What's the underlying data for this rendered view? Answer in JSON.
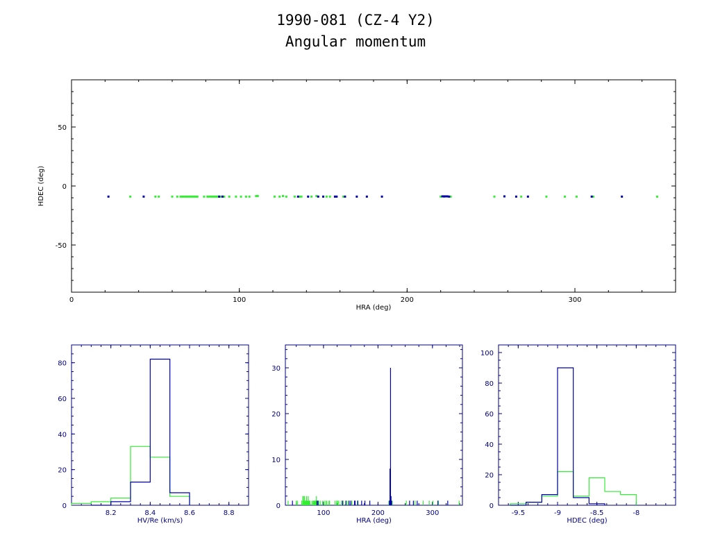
{
  "figure": {
    "title_line1": "1990-081 (CZ-4 Y2)",
    "title_line2": "Angular momentum"
  },
  "colors": {
    "axis_top": "#000000",
    "axis_bottom": "#000080",
    "green": "#33ee33",
    "blue": "#0000aa"
  },
  "chart_data": [
    {
      "type": "scatter",
      "id": "main",
      "xlabel": "HRA (deg)",
      "ylabel": "HDEC (deg)",
      "xlim": [
        0,
        360
      ],
      "ylim": [
        -90,
        90
      ],
      "xticks": [
        0,
        100,
        200,
        300
      ],
      "yticks": [
        -50,
        0,
        50
      ],
      "series": [
        {
          "color": "green",
          "points": [
            [
              35,
              -9
            ],
            [
              50,
              -9
            ],
            [
              52,
              -9
            ],
            [
              60,
              -9
            ],
            [
              63,
              -9
            ],
            [
              65,
              -9
            ],
            [
              66,
              -9
            ],
            [
              67,
              -9
            ],
            [
              68,
              -9
            ],
            [
              69,
              -9
            ],
            [
              70,
              -9
            ],
            [
              71,
              -9
            ],
            [
              72,
              -9
            ],
            [
              73,
              -9
            ],
            [
              74,
              -9
            ],
            [
              75,
              -9
            ],
            [
              79,
              -9
            ],
            [
              81,
              -9
            ],
            [
              82,
              -9
            ],
            [
              83,
              -9
            ],
            [
              84,
              -9
            ],
            [
              85,
              -9
            ],
            [
              86,
              -9
            ],
            [
              87,
              -9
            ],
            [
              88,
              -9
            ],
            [
              89,
              -9
            ],
            [
              91,
              -9
            ],
            [
              94,
              -9
            ],
            [
              98,
              -9
            ],
            [
              101,
              -9
            ],
            [
              104,
              -9
            ],
            [
              106,
              -9
            ],
            [
              110,
              -8.5
            ],
            [
              111,
              -8.5
            ],
            [
              121,
              -9
            ],
            [
              124,
              -9
            ],
            [
              126,
              -8.5
            ],
            [
              128,
              -9
            ],
            [
              133,
              -9
            ],
            [
              136,
              -9
            ],
            [
              137,
              -9
            ],
            [
              143,
              -9
            ],
            [
              146,
              -8.5
            ],
            [
              152,
              -9
            ],
            [
              154,
              -9
            ],
            [
              162,
              -9
            ],
            [
              220,
              -9
            ],
            [
              222,
              -9
            ],
            [
              226,
              -9
            ],
            [
              252,
              -9
            ],
            [
              268,
              -9
            ],
            [
              283,
              -9
            ],
            [
              294,
              -9
            ],
            [
              301,
              -9
            ],
            [
              311,
              -9
            ],
            [
              349,
              -9
            ]
          ]
        },
        {
          "color": "blue",
          "points": [
            [
              22,
              -9
            ],
            [
              43,
              -9
            ],
            [
              88,
              -9
            ],
            [
              90,
              -9
            ],
            [
              135,
              -9
            ],
            [
              141,
              -9
            ],
            [
              147,
              -9
            ],
            [
              150,
              -9
            ],
            [
              157,
              -9
            ],
            [
              158,
              -9
            ],
            [
              163,
              -9
            ],
            [
              170,
              -9
            ],
            [
              176,
              -9
            ],
            [
              185,
              -9
            ],
            [
              221,
              -8.8
            ],
            [
              222,
              -8.8
            ],
            [
              223,
              -8.8
            ],
            [
              224,
              -8.8
            ],
            [
              225,
              -9
            ],
            [
              258,
              -8.8
            ],
            [
              265,
              -9
            ],
            [
              272,
              -9
            ],
            [
              310,
              -9
            ],
            [
              328,
              -9
            ]
          ]
        }
      ]
    },
    {
      "type": "histogram",
      "id": "hv",
      "xlabel": "HV/Re (km/s)",
      "xlim": [
        8.0,
        8.9
      ],
      "ylim": [
        0,
        90
      ],
      "xticks": [
        "8.2",
        "8.4",
        "8.6",
        "8.8"
      ],
      "yticks": [
        0,
        20,
        40,
        60,
        80
      ],
      "series": [
        {
          "color": "blue",
          "edges": [
            8.1,
            8.2,
            8.3,
            8.4,
            8.5,
            8.6
          ],
          "counts": [
            0,
            2,
            13,
            82,
            7
          ]
        },
        {
          "color": "green",
          "edges": [
            8.0,
            8.1,
            8.2,
            8.3,
            8.4,
            8.5,
            8.6
          ],
          "counts": [
            1,
            2,
            4,
            33,
            27,
            5
          ]
        }
      ]
    },
    {
      "type": "histogram",
      "id": "hra",
      "xlabel": "HRA (deg)",
      "xlim": [
        30,
        355
      ],
      "ylim": [
        0,
        35
      ],
      "xticks": [
        "100",
        "200",
        "300"
      ],
      "yticks": [
        0,
        10,
        20,
        30
      ],
      "series": [
        {
          "color": "green",
          "x": [
            35,
            50,
            52,
            60,
            62,
            63,
            64,
            65,
            66,
            67,
            68,
            69,
            70,
            71,
            72,
            73,
            74,
            75,
            79,
            81,
            82,
            83,
            84,
            85,
            86,
            87,
            88,
            89,
            91,
            94,
            98,
            101,
            104,
            106,
            110,
            111,
            121,
            124,
            126,
            128,
            133,
            136,
            143,
            146,
            152,
            162,
            220,
            226,
            252,
            268,
            283,
            294,
            301,
            311,
            349
          ],
          "counts": [
            1,
            1,
            1,
            1,
            2,
            2,
            1,
            2,
            1,
            1,
            1,
            2,
            1,
            1,
            2,
            1,
            1,
            1,
            1,
            1,
            1,
            1,
            1,
            1,
            1,
            2,
            1,
            1,
            1,
            1,
            1,
            1,
            1,
            1,
            1,
            1,
            1,
            1,
            1,
            1,
            1,
            1,
            1,
            1,
            1,
            1,
            1,
            1,
            1,
            1,
            1,
            1,
            1,
            1,
            1
          ]
        },
        {
          "color": "blue",
          "x": [
            22,
            43,
            88,
            90,
            135,
            141,
            147,
            150,
            157,
            158,
            163,
            170,
            176,
            185,
            221,
            222,
            223,
            224,
            225,
            258,
            265,
            272,
            310,
            328
          ],
          "counts": [
            1,
            1,
            1,
            1,
            1,
            1,
            1,
            1,
            1,
            1,
            1,
            1,
            1,
            1,
            1,
            8,
            30,
            2,
            1,
            1,
            1,
            1,
            1,
            1
          ]
        }
      ]
    },
    {
      "type": "histogram",
      "id": "hdec",
      "xlabel": "HDEC (deg)",
      "xlim": [
        -9.75,
        -7.5
      ],
      "ylim": [
        0,
        105
      ],
      "xticks": [
        "-9.5",
        "-9",
        "-8.5",
        "-8"
      ],
      "yticks": [
        0,
        20,
        40,
        60,
        80,
        100
      ],
      "series": [
        {
          "color": "blue",
          "edges": [
            -9.6,
            -9.4,
            -9.2,
            -9.0,
            -8.8,
            -8.6,
            -8.4
          ],
          "counts": [
            0,
            2,
            7,
            90,
            5,
            1
          ]
        },
        {
          "color": "green",
          "edges": [
            -9.6,
            -9.4,
            -9.2,
            -9.0,
            -8.8,
            -8.6,
            -8.4,
            -8.2,
            -8.0
          ],
          "counts": [
            1,
            2,
            6,
            22,
            6,
            18,
            9,
            7
          ]
        }
      ]
    }
  ]
}
